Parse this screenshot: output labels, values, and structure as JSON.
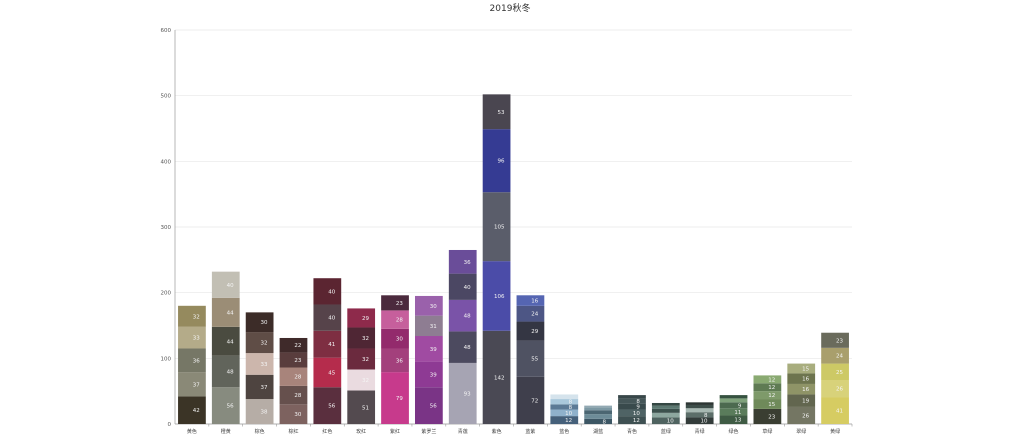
{
  "chart_data": {
    "type": "bar",
    "stacked": true,
    "title": "2019秋冬",
    "ylim": [
      0,
      600
    ],
    "yticks": [
      0,
      100,
      200,
      300,
      400,
      500,
      600
    ],
    "grid": true,
    "categories": [
      "黄色",
      "橙黄",
      "棕色",
      "棕红",
      "红色",
      "玫红",
      "紫红",
      "紫罗兰",
      "青莲",
      "紫色",
      "蓝紫",
      "蓝色",
      "湖蓝",
      "青色",
      "蓝绿",
      "青绿",
      "绿色",
      "草绿",
      "翠绿",
      "黄绿"
    ],
    "stacks": [
      {
        "category": "黄色",
        "segments": [
          {
            "value": 42,
            "color": "#3b3426"
          },
          {
            "value": 37,
            "color": "#8a8977"
          },
          {
            "value": 36,
            "color": "#767766"
          },
          {
            "value": 33,
            "color": "#b4ab89"
          },
          {
            "value": 32,
            "color": "#958a5e"
          }
        ]
      },
      {
        "category": "橙黄",
        "segments": [
          {
            "value": 56,
            "color": "#878b7f"
          },
          {
            "value": 48,
            "color": "#61645b"
          },
          {
            "value": 44,
            "color": "#4a4b40"
          },
          {
            "value": 44,
            "color": "#9b8d76"
          },
          {
            "value": 40,
            "color": "#c2bfb4"
          }
        ]
      },
      {
        "category": "棕色",
        "segments": [
          {
            "value": 38,
            "color": "#b6ada6"
          },
          {
            "value": 37,
            "color": "#4e4440"
          },
          {
            "value": 33,
            "color": "#ccb6ac"
          },
          {
            "value": 32,
            "color": "#5f4d46"
          },
          {
            "value": 30,
            "color": "#3c2c28"
          }
        ]
      },
      {
        "category": "棕红",
        "segments": [
          {
            "value": 30,
            "color": "#7d625f"
          },
          {
            "value": 28,
            "color": "#66504d"
          },
          {
            "value": 28,
            "color": "#a8847b"
          },
          {
            "value": 23,
            "color": "#593d3d"
          },
          {
            "value": 22,
            "color": "#3f2a2a"
          }
        ]
      },
      {
        "category": "红色",
        "segments": [
          {
            "value": 56,
            "color": "#5a2f3e"
          },
          {
            "value": 45,
            "color": "#b52c4c"
          },
          {
            "value": 41,
            "color": "#7e2e42"
          },
          {
            "value": 40,
            "color": "#56434a"
          },
          {
            "value": 40,
            "color": "#5b2531"
          }
        ]
      },
      {
        "category": "玫红",
        "segments": [
          {
            "value": 51,
            "color": "#534a4f"
          },
          {
            "value": 32,
            "color": "#eadbe0"
          },
          {
            "value": 32,
            "color": "#6b2a3e"
          },
          {
            "value": 32,
            "color": "#4f2634"
          },
          {
            "value": 29,
            "color": "#8e2a4b"
          }
        ]
      },
      {
        "category": "紫红",
        "segments": [
          {
            "value": 79,
            "color": "#c73a8c"
          },
          {
            "value": 36,
            "color": "#a3407c"
          },
          {
            "value": 30,
            "color": "#932a6c"
          },
          {
            "value": 28,
            "color": "#c65f9c"
          },
          {
            "value": 23,
            "color": "#4b2a3d"
          }
        ]
      },
      {
        "category": "紫罗兰",
        "segments": [
          {
            "value": 56,
            "color": "#7a3486"
          },
          {
            "value": 39,
            "color": "#8e3a94"
          },
          {
            "value": 39,
            "color": "#a04ba2"
          },
          {
            "value": 31,
            "color": "#8e7d92"
          },
          {
            "value": 30,
            "color": "#9a61ab"
          }
        ]
      },
      {
        "category": "青莲",
        "segments": [
          {
            "value": 93,
            "color": "#a6a4b3"
          },
          {
            "value": 48,
            "color": "#4c4a5f"
          },
          {
            "value": 48,
            "color": "#7a53a8"
          },
          {
            "value": 40,
            "color": "#4b4763"
          },
          {
            "value": 36,
            "color": "#6a4d99"
          }
        ]
      },
      {
        "category": "紫色",
        "segments": [
          {
            "value": 142,
            "color": "#4a4954"
          },
          {
            "value": 106,
            "color": "#4b4ca8"
          },
          {
            "value": 105,
            "color": "#5a5d6a"
          },
          {
            "value": 96,
            "color": "#353b93"
          },
          {
            "value": 53,
            "color": "#4a4650"
          }
        ]
      },
      {
        "category": "蓝紫",
        "segments": [
          {
            "value": 72,
            "color": "#3f3f4c"
          },
          {
            "value": 55,
            "color": "#4f5262"
          },
          {
            "value": 29,
            "color": "#343643"
          },
          {
            "value": 24,
            "color": "#4d5685"
          },
          {
            "value": 16,
            "color": "#5565b2"
          }
        ]
      },
      {
        "category": "蓝色",
        "segments": [
          {
            "value": 12,
            "color": "#45607a"
          },
          {
            "value": 10,
            "color": "#8fb1cb"
          },
          {
            "value": 8,
            "color": "#5c7a96"
          },
          {
            "value": 8,
            "color": "#aac8dc"
          },
          {
            "value": 7,
            "color": "#d5e3ec"
          }
        ]
      },
      {
        "category": "湖蓝",
        "segments": [
          {
            "value": 8,
            "color": "#3c5664"
          },
          {
            "value": 7,
            "color": "#6d8c98"
          },
          {
            "value": 6,
            "color": "#4b6672"
          },
          {
            "value": 4,
            "color": "#7d99a4"
          },
          {
            "value": 3,
            "color": "#93a9b3"
          }
        ]
      },
      {
        "category": "青色",
        "segments": [
          {
            "value": 12,
            "color": "#3e5052"
          },
          {
            "value": 10,
            "color": "#4f6365"
          },
          {
            "value": 9,
            "color": "#394a4c"
          },
          {
            "value": 8,
            "color": "#455658"
          },
          {
            "value": 5,
            "color": "#384749"
          }
        ]
      },
      {
        "category": "蓝绿",
        "segments": [
          {
            "value": 10,
            "color": "#4f6360"
          },
          {
            "value": 7,
            "color": "#8da79f"
          },
          {
            "value": 6,
            "color": "#3c514d"
          },
          {
            "value": 5,
            "color": "#5c7871"
          },
          {
            "value": 4,
            "color": "#344743"
          }
        ]
      },
      {
        "category": "青绿",
        "segments": [
          {
            "value": 10,
            "color": "#333c3a"
          },
          {
            "value": 8,
            "color": "#5c6e69"
          },
          {
            "value": 6,
            "color": "#a7b8b2"
          },
          {
            "value": 5,
            "color": "#3d4d49"
          },
          {
            "value": 4,
            "color": "#2c3533"
          }
        ]
      },
      {
        "category": "绿色",
        "segments": [
          {
            "value": 13,
            "color": "#3f5b44"
          },
          {
            "value": 11,
            "color": "#5a7c5b"
          },
          {
            "value": 9,
            "color": "#4c6a4f"
          },
          {
            "value": 6,
            "color": "#7fa27b"
          },
          {
            "value": 5,
            "color": "#365240"
          }
        ]
      },
      {
        "category": "草绿",
        "segments": [
          {
            "value": 23,
            "color": "#3a3e32"
          },
          {
            "value": 15,
            "color": "#6f8a5a"
          },
          {
            "value": 12,
            "color": "#7e9a6a"
          },
          {
            "value": 12,
            "color": "#5f7b53"
          },
          {
            "value": 12,
            "color": "#8aaa72"
          }
        ]
      },
      {
        "category": "翠绿",
        "segments": [
          {
            "value": 26,
            "color": "#747663"
          },
          {
            "value": 19,
            "color": "#62664f"
          },
          {
            "value": 16,
            "color": "#8f9467"
          },
          {
            "value": 16,
            "color": "#6d744e"
          },
          {
            "value": 15,
            "color": "#a8ad7e"
          }
        ]
      },
      {
        "category": "黄绿",
        "segments": [
          {
            "value": 41,
            "color": "#d6cc62"
          },
          {
            "value": 26,
            "color": "#d8d27a"
          },
          {
            "value": 25,
            "color": "#cdc965"
          },
          {
            "value": 24,
            "color": "#a99f6c"
          },
          {
            "value": 23,
            "color": "#6a6b5c"
          }
        ]
      }
    ]
  }
}
